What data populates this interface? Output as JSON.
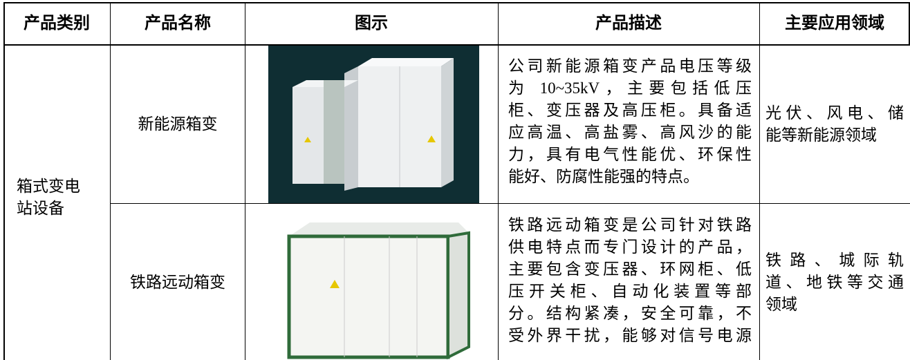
{
  "table": {
    "header": [
      "产品类别",
      "产品名称",
      "图示",
      "产品描述",
      "主要应用领域"
    ],
    "category": [
      "箱式变电",
      "站设备"
    ],
    "rows": [
      {
        "name": "新能源箱变",
        "description": [
          "公司新能源箱变产品电压等级",
          "为 10~35kV，主要包括低压",
          "柜、变压器及高压柜。具备适",
          "应高温、高盐雾、高风沙的能",
          "力，具有电气性能优、环保性",
          "能好、防腐性能强的特点。"
        ],
        "application": [
          "光伏、风电、储",
          "能等新能源领域"
        ]
      },
      {
        "name": "铁路远动箱变",
        "description": [
          "铁路远动箱变是公司针对铁路",
          "供电特点而专门设计的产品，",
          "主要包含变压器、环网柜、低",
          "压开关柜、自动化装置等部",
          "分。结构紧凑，安全可靠，不",
          "受外界干扰，能够对信号电源"
        ],
        "application": [
          "铁路、城际轨",
          "道、地铁等交通",
          "领域"
        ]
      }
    ]
  }
}
